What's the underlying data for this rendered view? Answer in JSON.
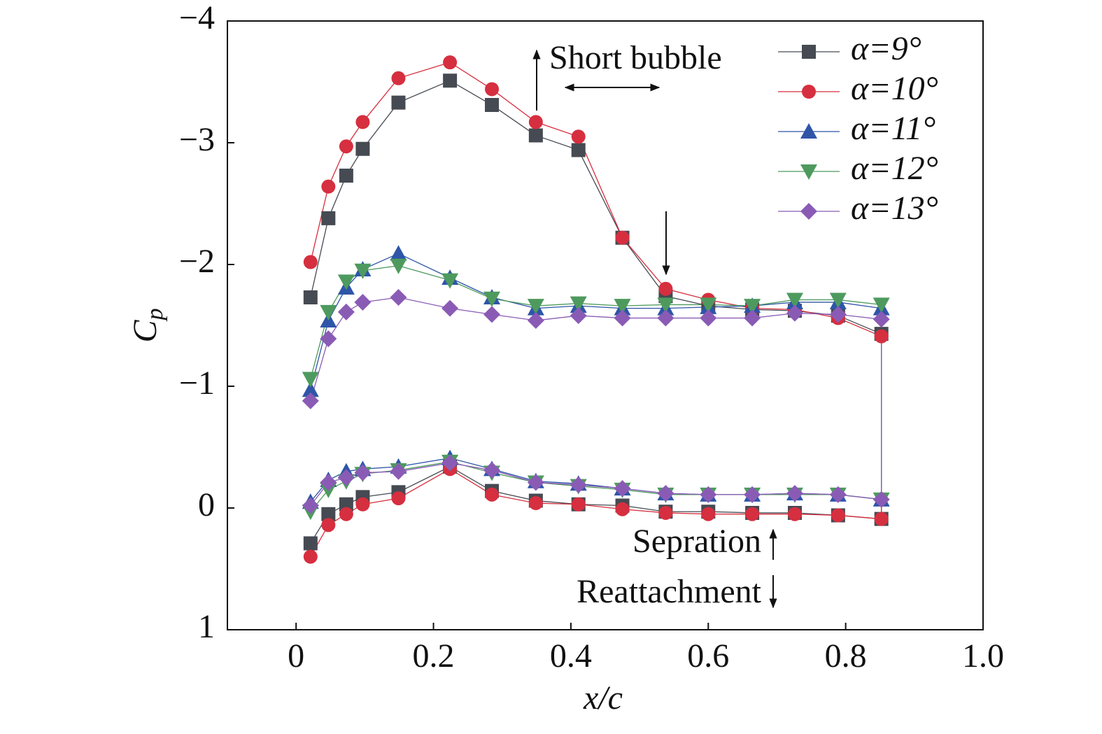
{
  "chart_data": {
    "type": "line",
    "ylabel_main": "C",
    "ylabel_subscript": "p",
    "xlabel": "x/c",
    "xlim": [
      -0.1,
      1.0
    ],
    "xticks": [
      0,
      0.2,
      0.4,
      0.6,
      0.8,
      {
        "value": 1.0,
        "label": "1.0"
      }
    ],
    "ylim": [
      1,
      -4
    ],
    "yticks": [
      {
        "value": -4,
        "label": "−4"
      },
      {
        "value": -3,
        "label": "−3"
      },
      {
        "value": -2,
        "label": "−2"
      },
      {
        "value": -1,
        "label": "−1"
      },
      0,
      1
    ],
    "x": [
      0.021,
      0.047,
      0.073,
      0.097,
      0.149,
      0.224,
      0.285,
      0.349,
      0.411,
      0.475,
      0.538,
      0.6,
      0.664,
      0.726,
      0.789,
      0.852,
      0.852,
      0.789,
      0.726,
      0.664,
      0.6,
      0.538,
      0.475,
      0.411,
      0.349,
      0.285,
      0.224,
      0.149,
      0.097,
      0.073,
      0.047,
      0.021
    ],
    "series": [
      {
        "name": "α=9°",
        "color": "#464a52",
        "marker": "square",
        "values": [
          -1.73,
          -2.38,
          -2.73,
          -2.95,
          -3.33,
          -3.51,
          -3.31,
          -3.06,
          -2.94,
          -2.22,
          -1.74,
          -1.66,
          -1.63,
          -1.62,
          -1.58,
          -1.43,
          0.09,
          0.06,
          0.04,
          0.04,
          0.03,
          0.03,
          -0.02,
          -0.03,
          -0.06,
          -0.14,
          -0.34,
          -0.13,
          -0.09,
          -0.03,
          0.05,
          0.29
        ]
      },
      {
        "name": "α=10°",
        "color": "#d62f3f",
        "marker": "circle",
        "values": [
          -2.02,
          -2.64,
          -2.97,
          -3.17,
          -3.53,
          -3.66,
          -3.44,
          -3.17,
          -3.05,
          -2.22,
          -1.8,
          -1.71,
          -1.64,
          -1.63,
          -1.56,
          -1.41,
          0.09,
          0.06,
          0.05,
          0.05,
          0.05,
          0.04,
          0.01,
          -0.03,
          -0.04,
          -0.11,
          -0.32,
          -0.08,
          -0.03,
          0.05,
          0.14,
          0.4
        ]
      },
      {
        "name": "α=11°",
        "color": "#2e55a8",
        "marker": "triangle-up",
        "values": [
          -0.97,
          -1.54,
          -1.81,
          -1.96,
          -2.09,
          -1.89,
          -1.73,
          -1.64,
          -1.66,
          -1.64,
          -1.64,
          -1.65,
          -1.66,
          -1.69,
          -1.69,
          -1.64,
          -0.07,
          -0.11,
          -0.12,
          -0.11,
          -0.11,
          -0.12,
          -0.16,
          -0.2,
          -0.22,
          -0.32,
          -0.41,
          -0.34,
          -0.32,
          -0.3,
          -0.23,
          -0.05
        ]
      },
      {
        "name": "α=12°",
        "color": "#4e9a5e",
        "marker": "triangle-down",
        "values": [
          -1.06,
          -1.61,
          -1.86,
          -1.95,
          -1.99,
          -1.87,
          -1.72,
          -1.66,
          -1.68,
          -1.66,
          -1.67,
          -1.67,
          -1.66,
          -1.71,
          -1.71,
          -1.67,
          -0.07,
          -0.11,
          -0.11,
          -0.11,
          -0.11,
          -0.11,
          -0.15,
          -0.18,
          -0.21,
          -0.29,
          -0.38,
          -0.31,
          -0.28,
          -0.22,
          -0.15,
          0.03
        ]
      },
      {
        "name": "α=13°",
        "color": "#8a5bb5",
        "marker": "diamond",
        "values": [
          -0.88,
          -1.39,
          -1.61,
          -1.69,
          -1.73,
          -1.64,
          -1.59,
          -1.54,
          -1.58,
          -1.56,
          -1.56,
          -1.56,
          -1.56,
          -1.6,
          -1.59,
          -1.55,
          -0.07,
          -0.11,
          -0.12,
          -0.11,
          -0.11,
          -0.12,
          -0.16,
          -0.19,
          -0.21,
          -0.31,
          -0.37,
          -0.3,
          -0.29,
          -0.25,
          -0.21,
          -0.02
        ]
      }
    ],
    "annotations": [
      "Short bubble",
      "Sepration",
      "Reattachment"
    ],
    "legend": "upper right"
  }
}
